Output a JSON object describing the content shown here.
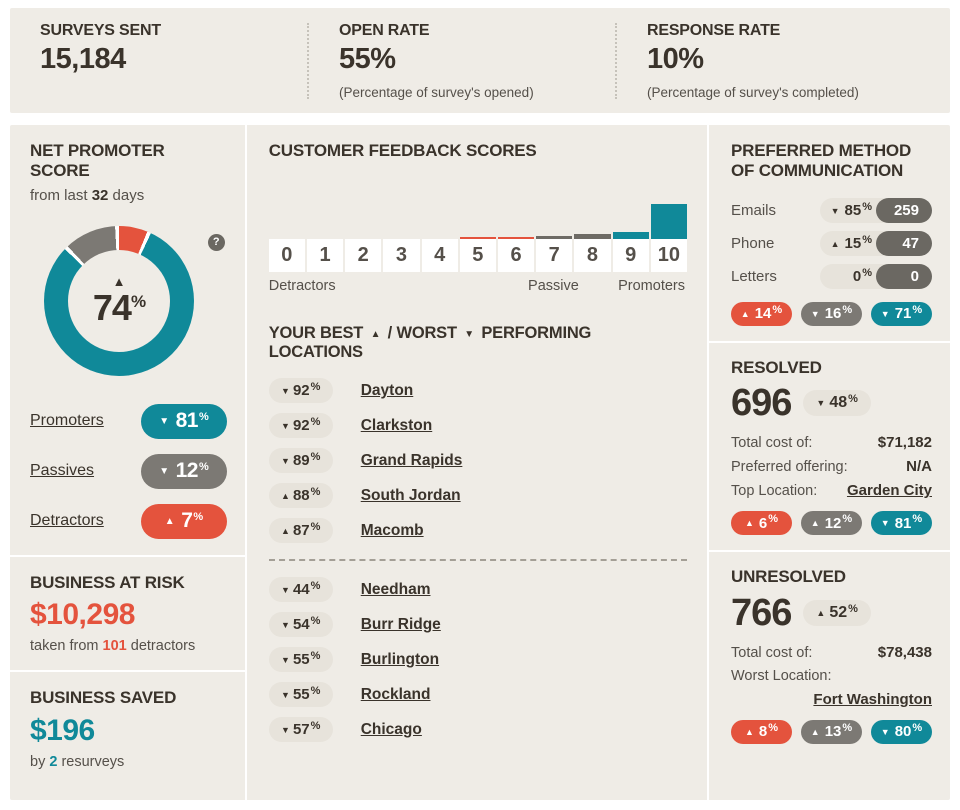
{
  "colors": {
    "card_bg": "#efece6",
    "teal": "#108999",
    "red": "#e4533d",
    "gray_pill": "#7c7974",
    "dark_pill": "#6b6862",
    "light_pill": "#e7e3db",
    "text_dark": "#3a332b",
    "text_body": "#55504a",
    "bar_gray": "#6e6b65"
  },
  "glyphs": {
    "up": "▲",
    "down": "▼",
    "help": "?",
    "pct": "%"
  },
  "top_stats": {
    "surveys": {
      "label": "SURVEYS SENT",
      "value": "15,184"
    },
    "open": {
      "label": "OPEN RATE",
      "value": "55%",
      "caption": "(Percentage of survey's opened)"
    },
    "response": {
      "label": "RESPONSE RATE",
      "value": "10%",
      "caption": "(Percentage of survey's completed)"
    }
  },
  "nps": {
    "title": "NET PROMOTER SCORE",
    "subtitle_pre": "from last ",
    "subtitle_days": "32",
    "subtitle_post": " days",
    "score_arrow": "▲",
    "score_num": "74",
    "donut": {
      "type": "pie",
      "segments": [
        {
          "name": "Detractors",
          "pct": 7,
          "color": "#e4533d"
        },
        {
          "name": "Promoters",
          "pct": 81,
          "color": "#108999"
        },
        {
          "name": "Passives",
          "pct": 12,
          "color": "#7c7974"
        }
      ]
    },
    "rows": [
      {
        "label": "Promoters",
        "arrow": "▼",
        "num": "81"
      },
      {
        "label": "Passives",
        "arrow": "▼",
        "num": "12"
      },
      {
        "label": "Detractors",
        "arrow": "▲",
        "num": "7"
      }
    ]
  },
  "business_at_risk": {
    "title": "BUSINESS AT RISK",
    "amount": "$10,298",
    "caption_pre": "taken from ",
    "caption_num": "101",
    "caption_post": " detractors"
  },
  "business_saved": {
    "title": "BUSINESS SAVED",
    "amount": "$196",
    "caption_pre": "by ",
    "caption_num": "2",
    "caption_post": " resurveys"
  },
  "feedback": {
    "title": "CUSTOMER FEEDBACK SCORES",
    "chart_data": {
      "type": "bar",
      "categories": [
        "0",
        "1",
        "2",
        "3",
        "4",
        "5",
        "6",
        "7",
        "8",
        "9",
        "10"
      ],
      "values": [
        0,
        0,
        0,
        0,
        0,
        2,
        2,
        3,
        5,
        7,
        35
      ],
      "note": "values are relative bar heights in px as displayed",
      "colors": [
        "",
        "",
        "",
        "",
        "",
        "#e4533d",
        "#e4533d",
        "#6e6b65",
        "#6e6b65",
        "#108999",
        "#108999"
      ],
      "group_labels": [
        "Detractors",
        "Passive",
        "Promoters"
      ]
    }
  },
  "locations": {
    "heading_p1": "YOUR BEST",
    "heading_up": "▲",
    "heading_p2": "/ WORST",
    "heading_down": "▼",
    "heading_p3": "PERFORMING LOCATIONS",
    "best": [
      {
        "arrow": "▼",
        "num": "92",
        "name": "Dayton"
      },
      {
        "arrow": "▼",
        "num": "92",
        "name": "Clarkston"
      },
      {
        "arrow": "▼",
        "num": "89",
        "name": "Grand Rapids"
      },
      {
        "arrow": "▲",
        "num": "88",
        "name": "South Jordan"
      },
      {
        "arrow": "▲",
        "num": "87",
        "name": "Macomb"
      }
    ],
    "worst": [
      {
        "arrow": "▼",
        "num": "44",
        "name": "Needham"
      },
      {
        "arrow": "▼",
        "num": "54",
        "name": "Burr Ridge"
      },
      {
        "arrow": "▼",
        "num": "55",
        "name": "Burlington"
      },
      {
        "arrow": "▼",
        "num": "55",
        "name": "Rockland"
      },
      {
        "arrow": "▼",
        "num": "57",
        "name": "Chicago"
      }
    ]
  },
  "communication": {
    "title": "PREFERRED METHOD OF COMMUNICATION",
    "rows": [
      {
        "label": "Emails",
        "arrow": "▼",
        "num": "85",
        "count": "259"
      },
      {
        "label": "Phone",
        "arrow": "▲",
        "num": "15",
        "count": "47"
      },
      {
        "label": "Letters",
        "arrow": "",
        "num": "0",
        "count": "0"
      }
    ],
    "trend_pills": [
      {
        "arrow": "▲",
        "num": "14"
      },
      {
        "arrow": "▼",
        "num": "16"
      },
      {
        "arrow": "▼",
        "num": "71"
      }
    ]
  },
  "resolved": {
    "title": "RESOLVED",
    "count": "696",
    "trend_arrow": "▼",
    "trend_num": "48",
    "rows": [
      {
        "label": "Total cost of:",
        "value": "$71,182"
      },
      {
        "label": "Preferred offering:",
        "value": "N/A"
      },
      {
        "label": "Top Location:",
        "value": "Garden City"
      }
    ],
    "trend_pills": [
      {
        "arrow": "▲",
        "num": "6"
      },
      {
        "arrow": "▲",
        "num": "12"
      },
      {
        "arrow": "▼",
        "num": "81"
      }
    ]
  },
  "unresolved": {
    "title": "UNRESOLVED",
    "count": "766",
    "trend_arrow": "▲",
    "trend_num": "52",
    "total_label": "Total cost of:",
    "total_value": "$78,438",
    "worst_label": "Worst Location:",
    "worst_value": "Fort Washington",
    "trend_pills": [
      {
        "arrow": "▲",
        "num": "8"
      },
      {
        "arrow": "▲",
        "num": "13"
      },
      {
        "arrow": "▼",
        "num": "80"
      }
    ]
  }
}
